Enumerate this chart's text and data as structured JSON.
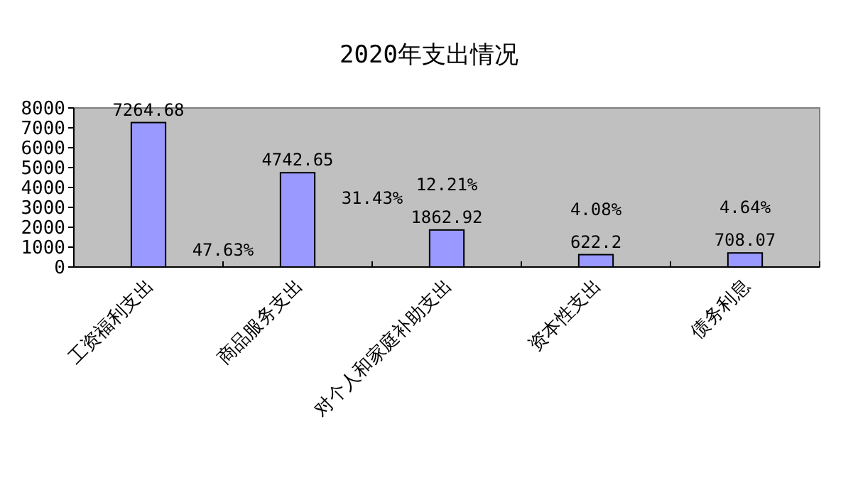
{
  "chart_data": {
    "type": "bar",
    "title": "2020年支出情况",
    "categories": [
      "工资福利支出",
      "商品服务支出",
      "对个人和家庭补助支出",
      "资本性支出",
      "债务利息"
    ],
    "values": [
      7264.68,
      4742.65,
      1862.92,
      622.2,
      708.07
    ],
    "color": "#9999ff",
    "data_labels": true,
    "ylim": [
      0,
      8000
    ],
    "yticks": [
      0,
      1000,
      2000,
      3000,
      4000,
      5000,
      6000,
      7000,
      8000
    ],
    "annotations": [
      "47.63%",
      "31.43%",
      "12.21%",
      "4.08%",
      "4.64%"
    ]
  }
}
